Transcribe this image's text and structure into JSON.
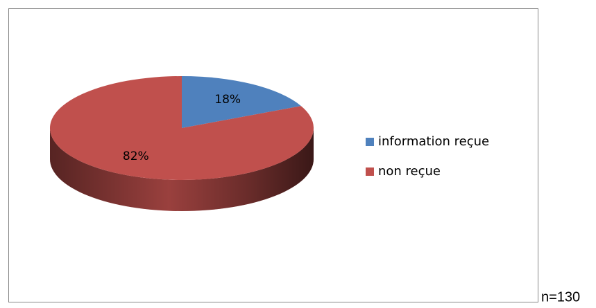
{
  "chart_data": {
    "type": "pie",
    "categories": [
      "information reçue",
      "non reçue"
    ],
    "values": [
      18,
      82
    ],
    "value_labels": [
      "18%",
      "82%"
    ],
    "colors": [
      "#4f81bd",
      "#c0504d"
    ],
    "legend": "right",
    "annotation": "n=130"
  }
}
